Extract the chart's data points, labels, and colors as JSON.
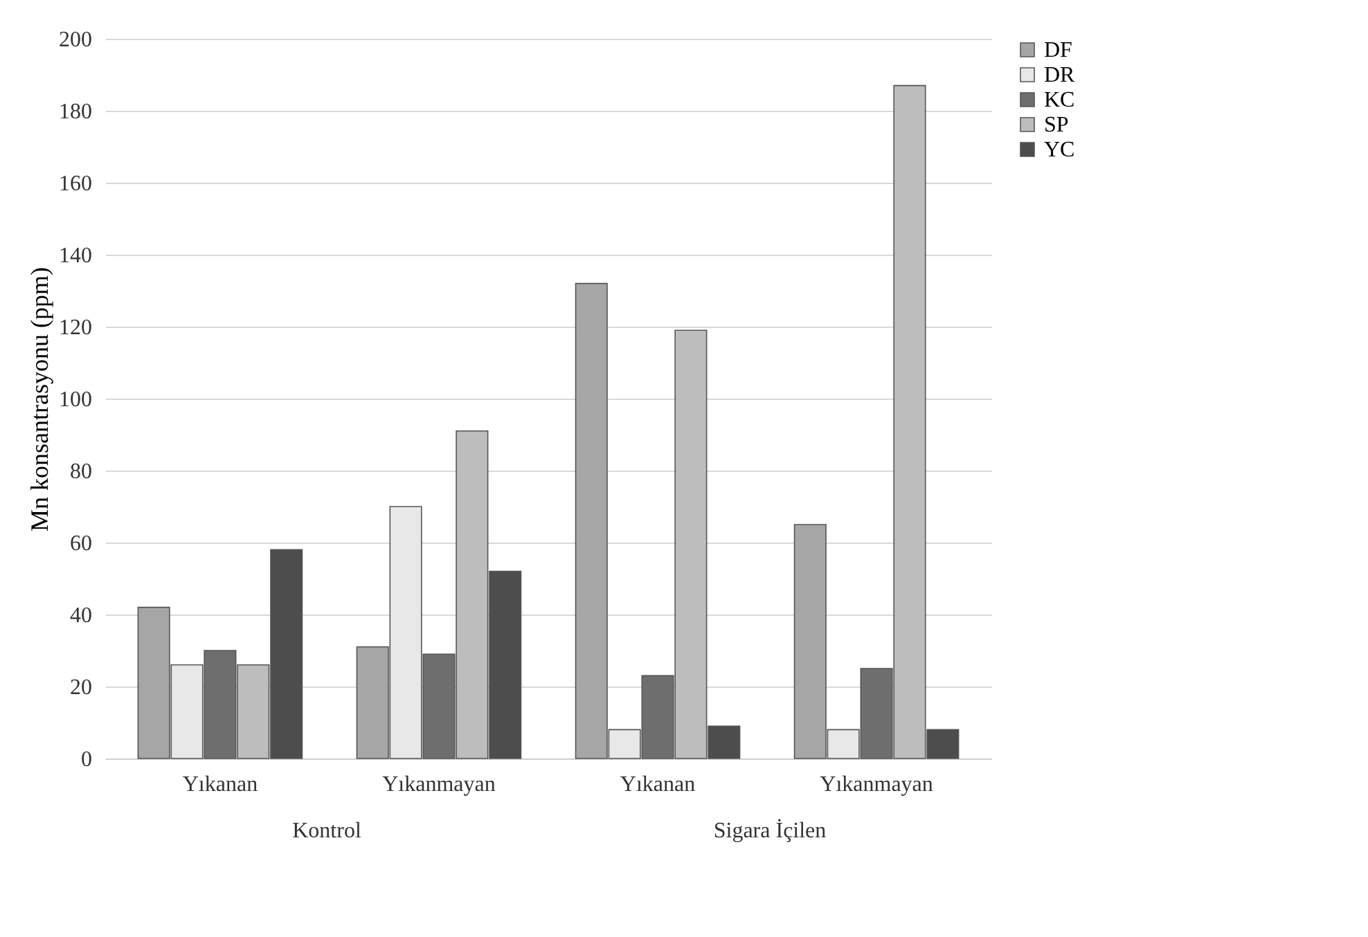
{
  "chart_data": {
    "type": "bar",
    "ylabel": "Mn konsantrasyonu (ppm)",
    "categories": [
      "Yıkanan",
      "Yıkanmayan",
      "Yıkanan",
      "Yıkanmayan"
    ],
    "series": [
      {
        "name": "DF",
        "color": "#a6a6a6",
        "values": [
          42,
          31,
          132,
          65
        ]
      },
      {
        "name": "DR",
        "color": "#e8e8e8",
        "values": [
          26,
          70,
          8,
          8
        ]
      },
      {
        "name": "KC",
        "color": "#6e6e6e",
        "values": [
          30,
          29,
          23,
          25
        ]
      },
      {
        "name": "SP",
        "color": "#bdbdbd",
        "values": [
          26,
          91,
          119,
          187
        ]
      },
      {
        "name": "YC",
        "color": "#4d4d4d",
        "values": [
          58,
          52,
          9,
          8
        ]
      }
    ],
    "annotations": [
      "Kontrol",
      "Sigara İçilen"
    ],
    "ylim": [
      0,
      200
    ],
    "yticks": [
      0,
      20,
      40,
      60,
      80,
      100,
      120,
      140,
      160,
      180,
      200
    ],
    "grid": "y",
    "legend": "right"
  }
}
